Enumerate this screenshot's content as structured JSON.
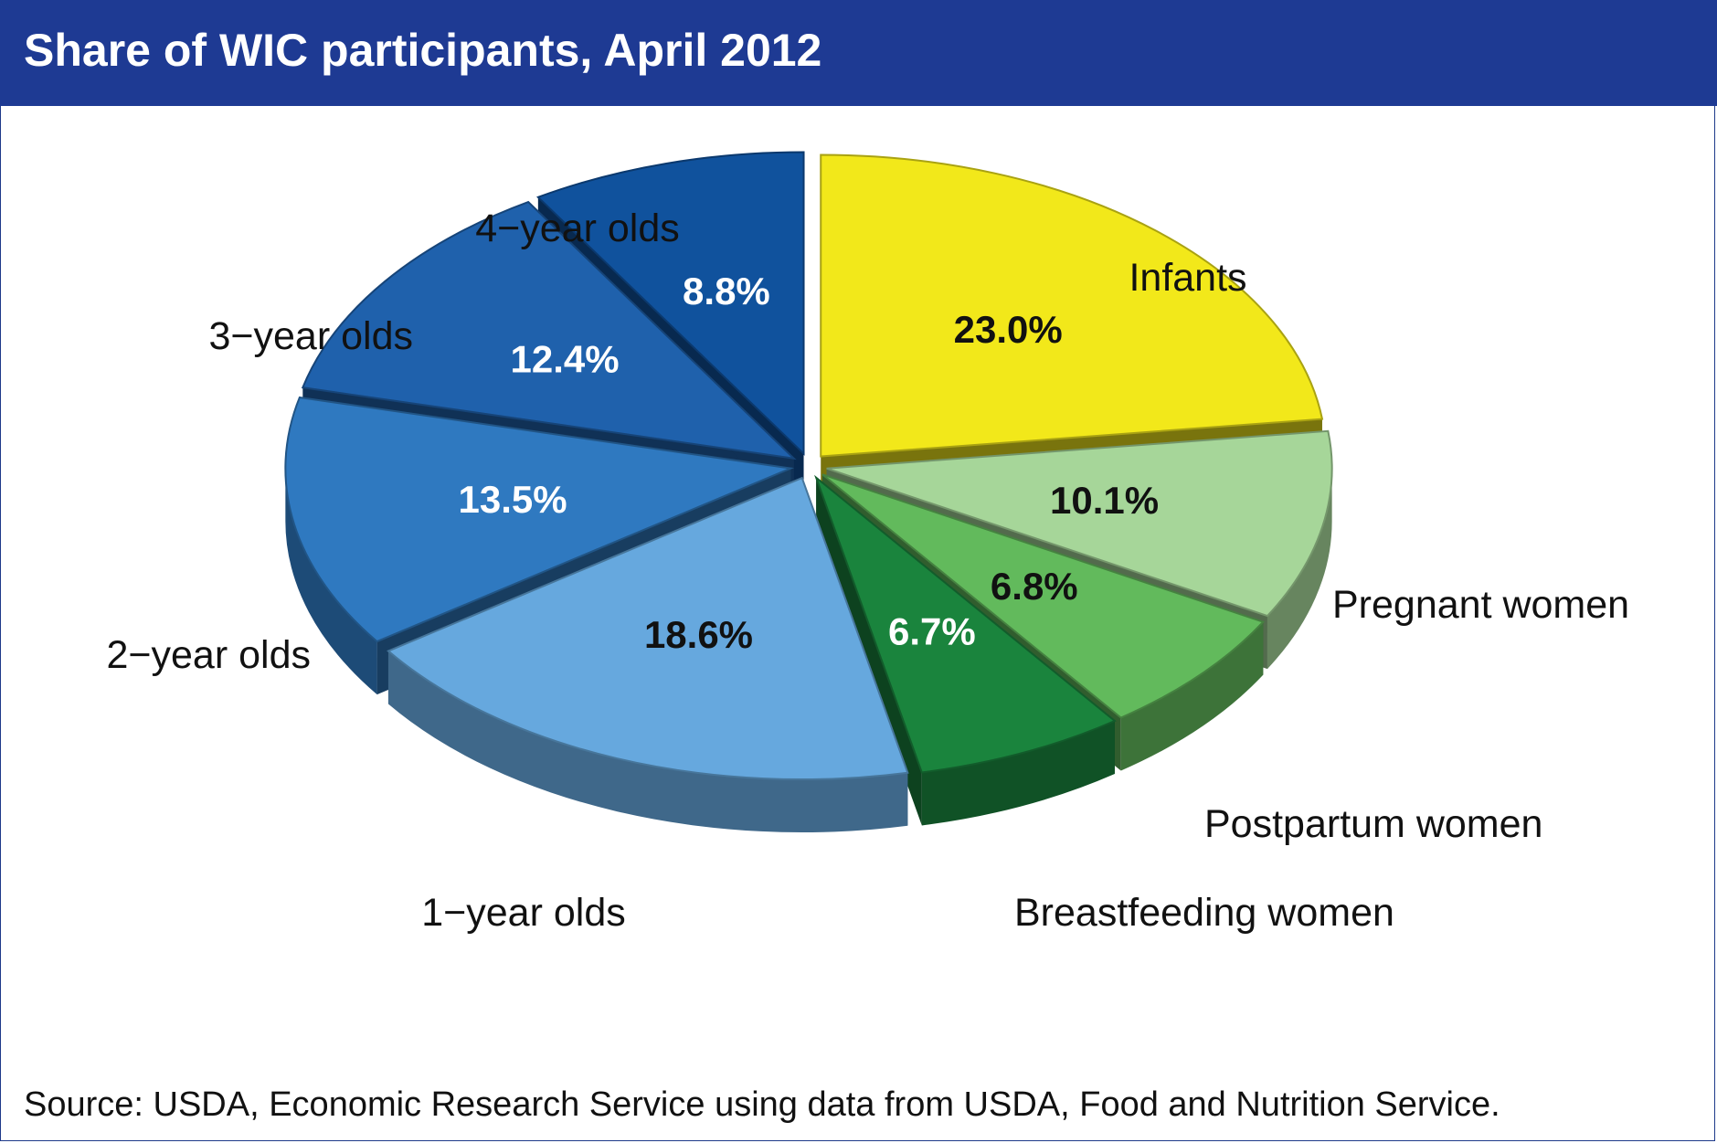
{
  "title": "Share of WIC participants, April 2012",
  "source": "Source: USDA, Economic Research Service using data from USDA, Food and Nutrition Service.",
  "chart_data": {
    "type": "pie",
    "title": "Share of WIC participants, April 2012",
    "unit": "%",
    "slices": [
      {
        "label": "Infants",
        "value": 23.0,
        "value_label": "23.0%",
        "color": "#f2e81a",
        "text_color": "#111111"
      },
      {
        "label": "Pregnant women",
        "value": 10.1,
        "value_label": "10.1%",
        "color": "#a6d699",
        "text_color": "#111111"
      },
      {
        "label": "Postpartum women",
        "value": 6.8,
        "value_label": "6.8%",
        "color": "#62ba5c",
        "text_color": "#111111"
      },
      {
        "label": "Breastfeeding women",
        "value": 6.7,
        "value_label": "6.7%",
        "color": "#1a843d",
        "text_color": "#ffffff"
      },
      {
        "label": "1−year olds",
        "value": 18.6,
        "value_label": "18.6%",
        "color": "#66a8de",
        "text_color": "#111111"
      },
      {
        "label": "2−year olds",
        "value": 13.5,
        "value_label": "13.5%",
        "color": "#2f79c0",
        "text_color": "#ffffff"
      },
      {
        "label": "3−year olds",
        "value": 12.4,
        "value_label": "12.4%",
        "color": "#1f61ac",
        "text_color": "#ffffff"
      },
      {
        "label": "4−year olds",
        "value": 8.8,
        "value_label": "8.8%",
        "color": "#10529d",
        "text_color": "#ffffff"
      }
    ]
  }
}
